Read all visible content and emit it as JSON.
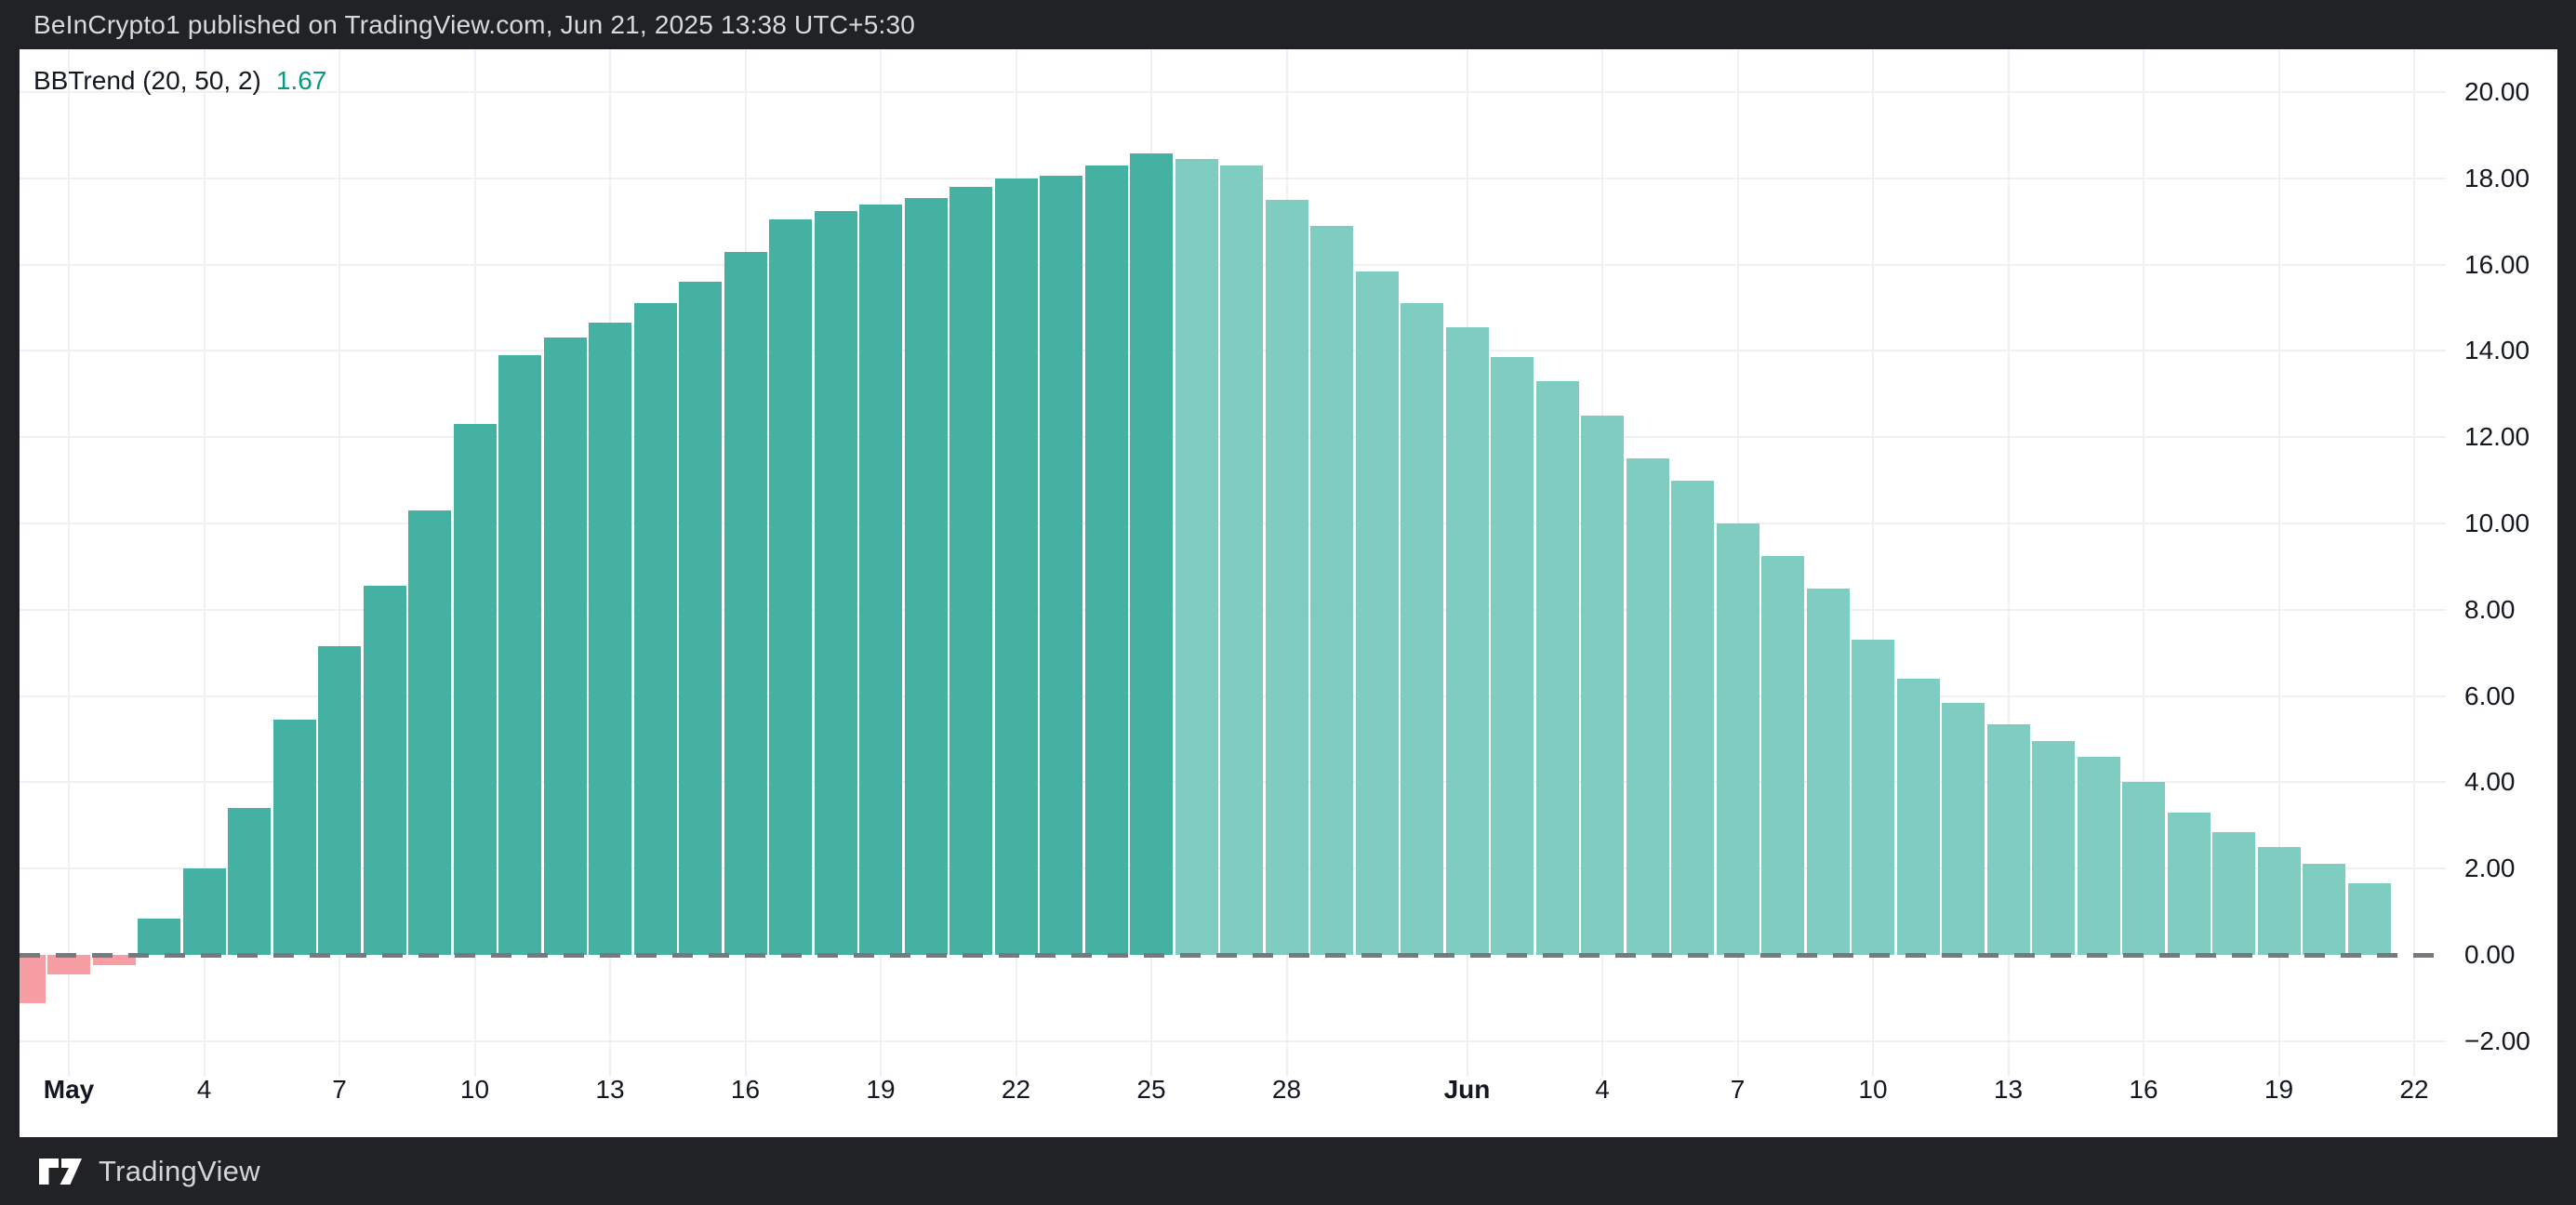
{
  "header": {
    "publish_text": "BeInCrypto1 published on TradingView.com, Jun 21, 2025 13:38 UTC+5:30"
  },
  "indicator": {
    "label": "BBTrend (20, 50, 2)",
    "value": "1.67"
  },
  "footer": {
    "brand": "TradingView",
    "logo_icon": "tradingview-logo"
  },
  "colors": {
    "background_dark": "#212226",
    "panel": "#ffffff",
    "grid": "#eef0f2",
    "axis_text": "#131722",
    "header_text": "#d9dadb",
    "footer_text": "#d4d5d7",
    "zero_dash": "#757980",
    "up_strong": "#45b1a2",
    "up_weak": "#7fccc1",
    "down": "#f79da4",
    "value_text": "#089981"
  },
  "chart_data": {
    "type": "bar",
    "title": "BBTrend (20, 50, 2)",
    "current_value": 1.67,
    "grid": true,
    "legend_position": "top-left",
    "ylim": [
      -3.2,
      20.9
    ],
    "zero_line": {
      "style": "dashed",
      "value": 0
    },
    "y_ticks": [
      {
        "v": 20,
        "label": "20.00"
      },
      {
        "v": 18,
        "label": "18.00"
      },
      {
        "v": 16,
        "label": "16.00"
      },
      {
        "v": 14,
        "label": "14.00"
      },
      {
        "v": 12,
        "label": "12.00"
      },
      {
        "v": 10,
        "label": "10.00"
      },
      {
        "v": 8,
        "label": "8.00"
      },
      {
        "v": 6,
        "label": "6.00"
      },
      {
        "v": 4,
        "label": "4.00"
      },
      {
        "v": 2,
        "label": "2.00"
      },
      {
        "v": 0,
        "label": "0.00"
      },
      {
        "v": -2,
        "label": "−2.00"
      }
    ],
    "x_ticks": [
      {
        "label": "May",
        "day": 1,
        "bold": true
      },
      {
        "label": "4",
        "day": 4,
        "bold": false
      },
      {
        "label": "7",
        "day": 7,
        "bold": false
      },
      {
        "label": "10",
        "day": 10,
        "bold": false
      },
      {
        "label": "13",
        "day": 13,
        "bold": false
      },
      {
        "label": "16",
        "day": 16,
        "bold": false
      },
      {
        "label": "19",
        "day": 19,
        "bold": false
      },
      {
        "label": "22",
        "day": 22,
        "bold": false
      },
      {
        "label": "25",
        "day": 25,
        "bold": false
      },
      {
        "label": "28",
        "day": 28,
        "bold": false
      },
      {
        "label": "Jun",
        "day": 32,
        "bold": true
      },
      {
        "label": "4",
        "day": 35,
        "bold": false
      },
      {
        "label": "7",
        "day": 38,
        "bold": false
      },
      {
        "label": "10",
        "day": 41,
        "bold": false
      },
      {
        "label": "13",
        "day": 44,
        "bold": false
      },
      {
        "label": "16",
        "day": 47,
        "bold": false
      },
      {
        "label": "19",
        "day": 50,
        "bold": false
      },
      {
        "label": "22",
        "day": 53,
        "bold": false
      }
    ],
    "strong_until_index": 25,
    "series": [
      {
        "name": "BBTrend",
        "points": [
          {
            "date": "Apr 30",
            "value": -1.12
          },
          {
            "date": "May 1",
            "value": -0.45
          },
          {
            "date": "May 2",
            "value": -0.24
          },
          {
            "date": "May 3",
            "value": 0.85
          },
          {
            "date": "May 4",
            "value": 2.0
          },
          {
            "date": "May 5",
            "value": 3.4
          },
          {
            "date": "May 6",
            "value": 5.45
          },
          {
            "date": "May 7",
            "value": 7.15
          },
          {
            "date": "May 8",
            "value": 8.55
          },
          {
            "date": "May 9",
            "value": 10.3
          },
          {
            "date": "May 10",
            "value": 12.3
          },
          {
            "date": "May 11",
            "value": 13.9
          },
          {
            "date": "May 12",
            "value": 14.3
          },
          {
            "date": "May 13",
            "value": 14.65
          },
          {
            "date": "May 14",
            "value": 15.1
          },
          {
            "date": "May 15",
            "value": 15.6
          },
          {
            "date": "May 16",
            "value": 16.3
          },
          {
            "date": "May 17",
            "value": 17.05
          },
          {
            "date": "May 18",
            "value": 17.25
          },
          {
            "date": "May 19",
            "value": 17.4
          },
          {
            "date": "May 20",
            "value": 17.55
          },
          {
            "date": "May 21",
            "value": 17.8
          },
          {
            "date": "May 22",
            "value": 18.0
          },
          {
            "date": "May 23",
            "value": 18.05
          },
          {
            "date": "May 24",
            "value": 18.3
          },
          {
            "date": "May 25",
            "value": 18.58
          },
          {
            "date": "May 26",
            "value": 18.45
          },
          {
            "date": "May 27",
            "value": 18.3
          },
          {
            "date": "May 28",
            "value": 17.5
          },
          {
            "date": "May 29",
            "value": 16.9
          },
          {
            "date": "May 30",
            "value": 15.85
          },
          {
            "date": "May 31",
            "value": 15.1
          },
          {
            "date": "Jun 1",
            "value": 14.55
          },
          {
            "date": "Jun 2",
            "value": 13.85
          },
          {
            "date": "Jun 3",
            "value": 13.3
          },
          {
            "date": "Jun 4",
            "value": 12.5
          },
          {
            "date": "Jun 5",
            "value": 11.5
          },
          {
            "date": "Jun 6",
            "value": 11.0
          },
          {
            "date": "Jun 7",
            "value": 10.0
          },
          {
            "date": "Jun 8",
            "value": 9.25
          },
          {
            "date": "Jun 9",
            "value": 8.5
          },
          {
            "date": "Jun 10",
            "value": 7.3
          },
          {
            "date": "Jun 11",
            "value": 6.4
          },
          {
            "date": "Jun 12",
            "value": 5.85
          },
          {
            "date": "Jun 13",
            "value": 5.35
          },
          {
            "date": "Jun 14",
            "value": 4.95
          },
          {
            "date": "Jun 15",
            "value": 4.6
          },
          {
            "date": "Jun 16",
            "value": 4.0
          },
          {
            "date": "Jun 17",
            "value": 3.3
          },
          {
            "date": "Jun 18",
            "value": 2.84
          },
          {
            "date": "Jun 19",
            "value": 2.5
          },
          {
            "date": "Jun 20",
            "value": 2.11
          },
          {
            "date": "Jun 21",
            "value": 1.67
          }
        ]
      }
    ]
  }
}
